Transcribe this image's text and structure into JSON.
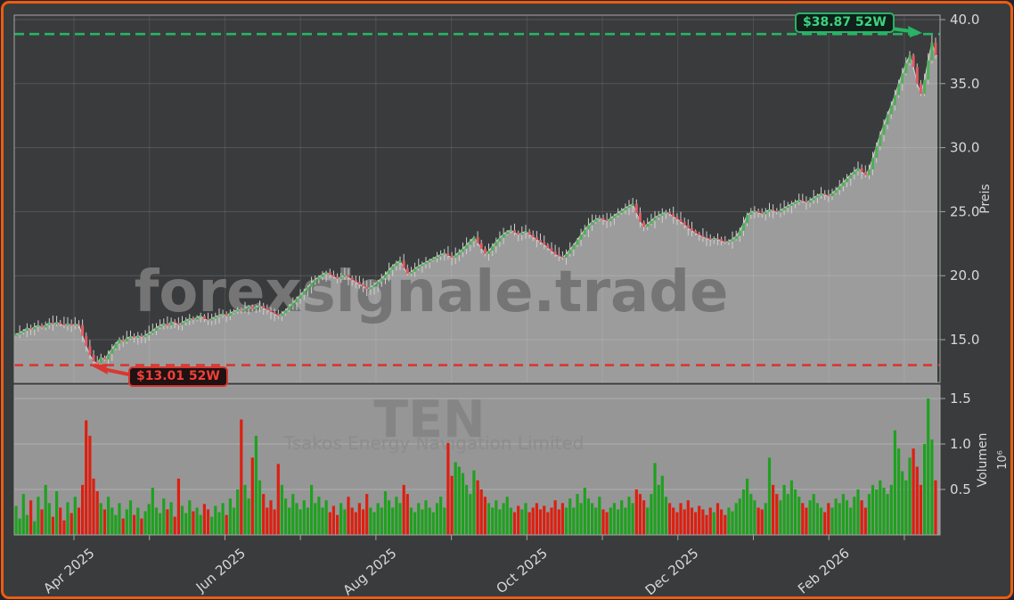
{
  "window": {
    "outer_background": "#23232e",
    "border_color": "#ec5d0e",
    "plot_background": "#3a3b3d"
  },
  "chart_data": {
    "type": "candlestick+volume",
    "symbol": "TEN",
    "company": "Tsakos Energy Navigation Limited",
    "watermark": "forexsignale.trade",
    "price_axis": {
      "label": "Preis",
      "ticks": [
        40.0,
        35.0,
        30.0,
        25.0,
        20.0,
        15.0
      ],
      "range": [
        11.6,
        40.35
      ]
    },
    "volume_axis": {
      "label": "Volumen",
      "unit": "10⁶",
      "ticks": [
        1.5,
        1.0,
        0.5
      ],
      "range": [
        0,
        1.65
      ]
    },
    "x_axis": {
      "tick_labels": [
        "Apr 2025",
        "Jun 2025",
        "Aug 2025",
        "Oct 2025",
        "Dec 2025",
        "Feb 2026"
      ],
      "months_shown": 12,
      "grid": true
    },
    "annotations": {
      "high": {
        "label": "$38.87 52W",
        "value": 38.87,
        "color": "#27b465"
      },
      "low": {
        "label": "$13.01 52W",
        "value": 13.01,
        "color": "#d93731"
      }
    },
    "colors": {
      "area_fill": "#9c9c9c",
      "volume_panel": "#969696",
      "close_line": "#c9c9c9",
      "wick": "#cfcfcf",
      "candle_up": "#4cb155",
      "candle_down": "#e05a64",
      "volume_up": "#1fa11f",
      "volume_down": "#dd1f10",
      "tick_text": "#d8d8d8",
      "spine": "#a5a5a5",
      "watermark_price": "#757575",
      "watermark_symbol": "#858585",
      "watermark_company": "#8d8d8d"
    },
    "closes": [
      15.4,
      15.55,
      15.7,
      15.9,
      15.8,
      16.0,
      16.1,
      15.95,
      16.15,
      16.3,
      16.2,
      16.35,
      16.2,
      16.1,
      16.25,
      16.1,
      16.2,
      16.15,
      15.3,
      14.5,
      13.8,
      13.3,
      13.15,
      13.6,
      13.45,
      13.9,
      14.3,
      14.7,
      15.0,
      14.85,
      15.1,
      15.25,
      15.15,
      15.3,
      15.2,
      15.35,
      15.5,
      15.7,
      15.95,
      16.1,
      16.25,
      16.1,
      16.4,
      16.3,
      16.15,
      16.35,
      16.5,
      16.65,
      16.55,
      16.75,
      16.85,
      16.6,
      16.5,
      16.65,
      16.8,
      16.9,
      17.0,
      16.85,
      17.1,
      17.2,
      17.35,
      17.25,
      17.45,
      17.6,
      17.4,
      17.55,
      17.65,
      17.45,
      17.3,
      17.15,
      17.0,
      16.85,
      17.05,
      17.3,
      17.6,
      17.9,
      18.2,
      18.5,
      18.8,
      19.1,
      19.45,
      19.7,
      19.9,
      20.1,
      20.25,
      20.05,
      19.9,
      19.75,
      19.9,
      20.05,
      19.85,
      19.65,
      19.5,
      19.3,
      19.15,
      18.95,
      19.1,
      19.3,
      19.55,
      19.8,
      20.1,
      20.45,
      20.75,
      21.0,
      21.15,
      20.6,
      20.15,
      20.3,
      20.55,
      20.75,
      20.9,
      21.05,
      21.2,
      21.35,
      21.5,
      21.65,
      21.75,
      21.55,
      21.4,
      21.6,
      21.85,
      22.1,
      22.4,
      22.7,
      23.0,
      22.55,
      22.1,
      21.7,
      21.95,
      22.3,
      22.65,
      22.95,
      23.25,
      23.45,
      23.55,
      23.35,
      23.2,
      23.35,
      23.45,
      23.2,
      23.0,
      22.8,
      22.6,
      22.4,
      22.15,
      21.9,
      21.65,
      21.5,
      21.4,
      21.7,
      22.05,
      22.4,
      22.8,
      23.2,
      23.6,
      23.95,
      24.2,
      24.4,
      24.5,
      24.35,
      24.25,
      24.5,
      24.7,
      24.9,
      25.1,
      25.3,
      25.45,
      25.6,
      24.9,
      24.2,
      23.8,
      24.05,
      24.3,
      24.55,
      24.7,
      24.85,
      24.95,
      24.8,
      24.6,
      24.4,
      24.2,
      23.95,
      23.7,
      23.5,
      23.3,
      23.15,
      23.0,
      22.9,
      22.8,
      22.9,
      22.85,
      22.7,
      22.6,
      22.7,
      22.85,
      23.1,
      23.5,
      24.1,
      24.75,
      24.95,
      25.05,
      24.9,
      24.8,
      25.0,
      25.15,
      25.05,
      24.95,
      25.1,
      25.3,
      25.45,
      25.6,
      25.75,
      25.9,
      25.8,
      25.7,
      25.9,
      26.1,
      26.25,
      26.4,
      26.3,
      26.2,
      26.45,
      26.7,
      27.0,
      27.3,
      27.6,
      27.9,
      28.15,
      28.4,
      28.1,
      27.85,
      28.3,
      29.2,
      30.1,
      31.0,
      31.8,
      32.6,
      33.3,
      34.1,
      35.0,
      35.8,
      36.6,
      37.2,
      36.3,
      35.0,
      34.2,
      35.3,
      36.8,
      38.2,
      37.2
    ],
    "volumes_millions": [
      0.32,
      0.18,
      0.45,
      0.22,
      0.38,
      0.15,
      0.42,
      0.28,
      0.55,
      0.35,
      0.2,
      0.48,
      0.3,
      0.16,
      0.36,
      0.24,
      0.42,
      0.3,
      0.55,
      1.26,
      1.09,
      0.62,
      0.48,
      0.35,
      0.28,
      0.42,
      0.3,
      0.22,
      0.35,
      0.18,
      0.28,
      0.38,
      0.22,
      0.3,
      0.18,
      0.26,
      0.34,
      0.52,
      0.3,
      0.24,
      0.4,
      0.28,
      0.36,
      0.2,
      0.62,
      0.32,
      0.24,
      0.38,
      0.26,
      0.3,
      0.22,
      0.34,
      0.28,
      0.2,
      0.32,
      0.25,
      0.35,
      0.22,
      0.4,
      0.3,
      0.5,
      1.27,
      0.55,
      0.4,
      0.85,
      1.09,
      0.6,
      0.45,
      0.3,
      0.38,
      0.28,
      0.78,
      0.55,
      0.4,
      0.3,
      0.45,
      0.35,
      0.28,
      0.38,
      0.3,
      0.55,
      0.35,
      0.42,
      0.3,
      0.38,
      0.25,
      0.32,
      0.22,
      0.35,
      0.28,
      0.42,
      0.3,
      0.25,
      0.35,
      0.28,
      0.45,
      0.3,
      0.25,
      0.35,
      0.3,
      0.48,
      0.38,
      0.3,
      0.42,
      0.35,
      0.55,
      0.45,
      0.3,
      0.25,
      0.35,
      0.28,
      0.38,
      0.3,
      0.25,
      0.35,
      0.42,
      0.3,
      1.01,
      0.65,
      0.8,
      0.75,
      0.68,
      0.55,
      0.45,
      0.71,
      0.6,
      0.5,
      0.42,
      0.35,
      0.3,
      0.38,
      0.28,
      0.35,
      0.42,
      0.3,
      0.25,
      0.32,
      0.28,
      0.35,
      0.25,
      0.3,
      0.35,
      0.28,
      0.32,
      0.25,
      0.3,
      0.38,
      0.28,
      0.35,
      0.3,
      0.4,
      0.3,
      0.45,
      0.35,
      0.52,
      0.4,
      0.35,
      0.3,
      0.42,
      0.28,
      0.25,
      0.3,
      0.35,
      0.28,
      0.38,
      0.3,
      0.42,
      0.35,
      0.5,
      0.45,
      0.38,
      0.3,
      0.45,
      0.79,
      0.55,
      0.65,
      0.42,
      0.35,
      0.3,
      0.25,
      0.35,
      0.28,
      0.38,
      0.3,
      0.25,
      0.32,
      0.28,
      0.22,
      0.3,
      0.25,
      0.35,
      0.28,
      0.22,
      0.3,
      0.26,
      0.35,
      0.4,
      0.5,
      0.62,
      0.45,
      0.38,
      0.3,
      0.28,
      0.35,
      0.85,
      0.55,
      0.45,
      0.38,
      0.55,
      0.45,
      0.6,
      0.5,
      0.42,
      0.35,
      0.3,
      0.38,
      0.45,
      0.35,
      0.3,
      0.25,
      0.35,
      0.3,
      0.4,
      0.35,
      0.45,
      0.38,
      0.3,
      0.42,
      0.5,
      0.38,
      0.3,
      0.45,
      0.55,
      0.5,
      0.6,
      0.52,
      0.45,
      0.55,
      1.15,
      0.95,
      0.7,
      0.6,
      0.85,
      0.95,
      0.75,
      0.55,
      1.0,
      1.5,
      1.05,
      0.6
    ]
  }
}
